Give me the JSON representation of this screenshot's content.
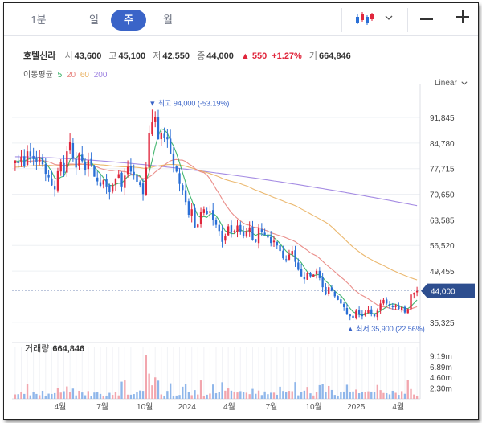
{
  "tabs": [
    {
      "label": "1분",
      "active": false
    },
    {
      "label": "일",
      "active": false
    },
    {
      "label": "주",
      "active": true
    },
    {
      "label": "월",
      "active": false
    }
  ],
  "toolbar": {
    "chart_type_icon": "candlestick-icon",
    "dropdown_icon": "chevron-down-icon",
    "zoom_out_icon": "minus-icon",
    "zoom_in_icon": "plus-icon"
  },
  "stock": {
    "name": "호텔신라",
    "open_label": "시",
    "open": "43,600",
    "high_label": "고",
    "high": "45,100",
    "low_label": "저",
    "low": "42,550",
    "close_label": "종",
    "close": "44,000",
    "change": "▲ 550",
    "change_pct": "+1.27%",
    "volume_label": "거",
    "volume": "664,846"
  },
  "moving_average": {
    "label": "이동평균",
    "periods": [
      {
        "label": "5",
        "color": "#2fae5f"
      },
      {
        "label": "20",
        "color": "#e8827d"
      },
      {
        "label": "60",
        "color": "#e9b05f"
      },
      {
        "label": "200",
        "color": "#9b7fe0"
      }
    ]
  },
  "scale_label": "Linear",
  "colors": {
    "up": "#e0263c",
    "down": "#2a6fd6",
    "accent": "#3a64c8",
    "price_tag": "#2d4e8f",
    "volume_up": "#f2a6ae",
    "volume_down": "#8fb6ea",
    "grid": "#eef0f4"
  },
  "chart_data": {
    "type": "candlestick",
    "price_axis_ticks": [
      91845,
      84780,
      77715,
      70650,
      63585,
      56520,
      49455,
      35325
    ],
    "ylim": [
      31500,
      98500
    ],
    "x_tick_labels": [
      "4월",
      "7월",
      "10월",
      "2024",
      "4월",
      "7월",
      "10월",
      "2025",
      "4월"
    ],
    "current_price_label": "44,000",
    "max_annotation": "▼ 최고 94,000 (-53.19%)",
    "min_annotation": "▲ 최저 35,900 (22.56%)",
    "volume_panel": {
      "label": "거래량",
      "value": "664,846",
      "ticks": [
        "9.19m",
        "6.89m",
        "4.60m",
        "2.30m"
      ],
      "ylim": [
        0,
        11000000
      ]
    },
    "weeks_start_count": 113,
    "closes": [
      80000,
      79200,
      81000,
      78500,
      82500,
      81200,
      80300,
      79600,
      80800,
      78900,
      76300,
      75300,
      73100,
      72000,
      77000,
      79500,
      76500,
      82500,
      85000,
      80500,
      78000,
      82000,
      79800,
      77200,
      80000,
      78800,
      75500,
      74200,
      73000,
      74500,
      72800,
      71200,
      73300,
      75000,
      76200,
      72800,
      75800,
      78200,
      76900,
      75900,
      74100,
      73200,
      70700,
      78000,
      87500,
      90500,
      92000,
      85800,
      87600,
      86200,
      85800,
      81800,
      78800,
      76900,
      73500,
      71800,
      68500,
      65000,
      66500,
      61500,
      62300,
      65800,
      66500,
      65200,
      66000,
      63500,
      62200,
      60500,
      57500,
      59000,
      61800,
      60000,
      60500,
      62000,
      60300,
      59000,
      60500,
      61500,
      58000,
      57500,
      61200,
      60300,
      59400,
      58700,
      57200,
      57800,
      56500,
      55000,
      53000,
      52500,
      54000,
      55000,
      52000,
      49800,
      48000,
      47200,
      49000,
      48000,
      48500,
      49500,
      47500,
      45000,
      43000,
      45000,
      44000,
      42500,
      41500,
      40500,
      39500,
      37500,
      37000,
      36500,
      38500,
      37500,
      37000,
      38000,
      38800,
      37500,
      37000,
      38500,
      40500,
      41500,
      40500,
      40000,
      39500,
      40000,
      39000,
      39500,
      38000,
      39000,
      43000,
      43450,
      44000
    ]
  }
}
